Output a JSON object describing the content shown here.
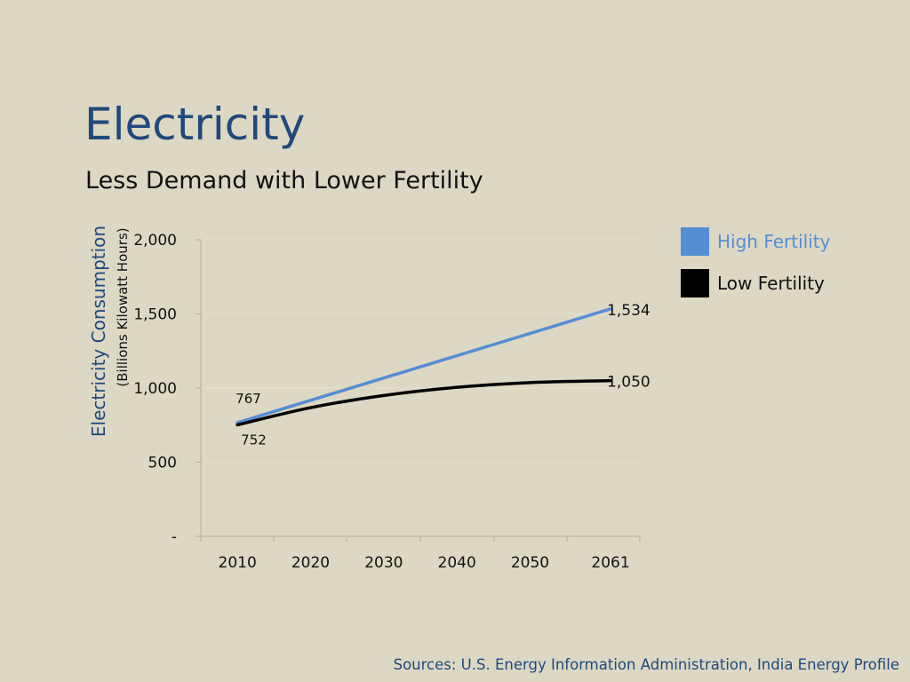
{
  "slide": {
    "title": "Electricity",
    "subtitle": "Less Demand with Lower Fertility",
    "source": "Sources: U.S. Energy Information Administration, India Energy Profile"
  },
  "colors": {
    "background": "#ddd8c3",
    "title": "#1f497d",
    "high_fertility": "#558ed5",
    "low_fertility": "#000000"
  },
  "chart_data": {
    "type": "line",
    "title": "",
    "ylabel": "Electricity Consumption",
    "ylabel_sub": "(Billions Kilowatt Hours)",
    "xlabel": "",
    "x_ticks": [
      "2010",
      "2020",
      "2030",
      "2040",
      "2050",
      "2061"
    ],
    "y_ticks": [
      "-",
      "500",
      "1,000",
      "1,500",
      "2,000"
    ],
    "y_tick_values": [
      0,
      500,
      1000,
      1500,
      2000
    ],
    "ylim": [
      0,
      2000
    ],
    "grid": true,
    "legend_position": "right",
    "series": [
      {
        "name": "High Fertility",
        "color": "#558ed5",
        "x": [
          2010,
          2061
        ],
        "values": [
          767,
          1534
        ],
        "labels": [
          {
            "x": 2010,
            "text": "767"
          },
          {
            "x": 2061,
            "text": "1,534"
          }
        ]
      },
      {
        "name": "Low Fertility",
        "color": "#000000",
        "x": [
          2010,
          2020,
          2030,
          2040,
          2050,
          2061
        ],
        "values": [
          752,
          868,
          950,
          1005,
          1037,
          1050
        ],
        "labels": [
          {
            "x": 2010,
            "text": "752"
          },
          {
            "x": 2061,
            "text": "1,050"
          }
        ]
      }
    ]
  }
}
